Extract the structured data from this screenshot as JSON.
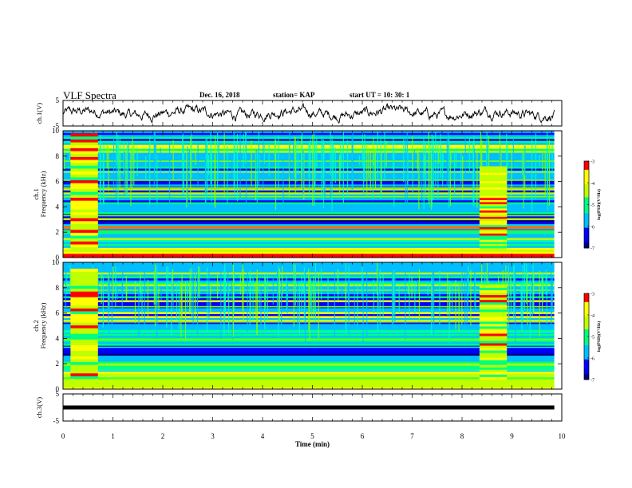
{
  "header": {
    "title": "VLF Spectra",
    "date": "Dec. 16, 2018",
    "station": "station= KAP",
    "start": "start  UT =   10: 30: 1"
  },
  "chart_data": {
    "type": "heatmap",
    "xlabel": "Time  (min)",
    "xlim": [
      0,
      10
    ],
    "xticks": [
      "0",
      "1",
      "2",
      "3",
      "4",
      "5",
      "6",
      "7",
      "8",
      "9",
      "10"
    ],
    "panels": [
      {
        "id": "ch1_wave",
        "type": "line",
        "ylabel": "ch.1(V)",
        "ylim": [
          -5,
          5
        ],
        "yticks": [
          "5",
          "-5"
        ]
      },
      {
        "id": "ch1_spec",
        "type": "heatmap",
        "ylabel": "ch.1\nFrequency  (kHz)",
        "ylim": [
          0,
          10
        ],
        "yticks": [
          "0",
          "2",
          "4",
          "6",
          "8",
          "10"
        ]
      },
      {
        "id": "ch2_spec",
        "type": "heatmap",
        "ylabel": "ch.2\nFrequency  (kHz)",
        "ylim": [
          0,
          10
        ],
        "yticks": [
          "0",
          "2",
          "4",
          "6",
          "8",
          "10"
        ]
      },
      {
        "id": "ch3_wave",
        "type": "line",
        "ylabel": "ch.3(V)",
        "ylim": [
          -5,
          5
        ],
        "yticks": [
          "5",
          "-5"
        ],
        "value": 0
      }
    ],
    "colorbar": {
      "label": "log(PSD)(V²/Hz)",
      "range": [
        -7,
        -3
      ],
      "ticks": [
        "-3",
        "-4",
        "-5",
        "-6",
        "-7"
      ]
    },
    "bursts_min": [
      [
        0.15,
        0.7
      ],
      [
        8.35,
        8.9
      ]
    ],
    "colors": [
      "#00007f",
      "#0000ff",
      "#00bfff",
      "#00ff7f",
      "#bfff00",
      "#ffff00",
      "#ff0000"
    ]
  }
}
